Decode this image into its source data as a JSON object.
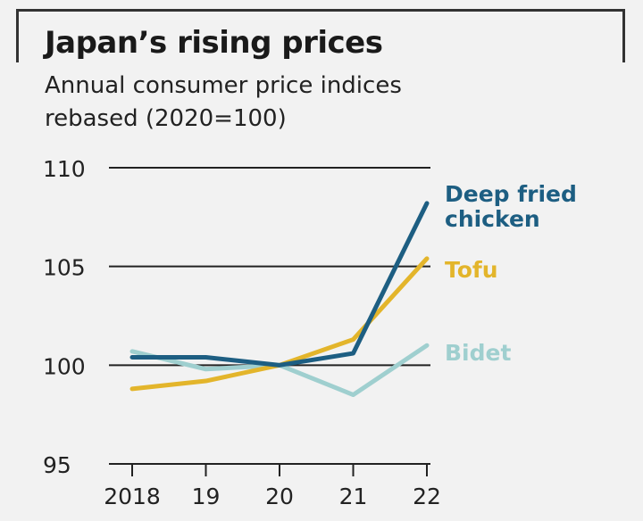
{
  "chart_data": {
    "type": "line",
    "title": "Japan’s rising prices",
    "subtitle_lines": [
      "Annual consumer price indices",
      "rebased (2020=100)"
    ],
    "x": [
      "2018",
      "19",
      "20",
      "21",
      "22"
    ],
    "ylim": [
      95,
      110
    ],
    "yticks": [
      110,
      105,
      100,
      95
    ],
    "series": [
      {
        "name": "Bidet",
        "label_lines": [
          "Bidet"
        ],
        "color": "#9fcfcf",
        "values": [
          100.7,
          99.8,
          100.0,
          98.5,
          101.0
        ]
      },
      {
        "name": "Tofu",
        "label_lines": [
          "Tofu"
        ],
        "color": "#e3b52b",
        "values": [
          98.8,
          99.2,
          100.0,
          101.3,
          105.4
        ]
      },
      {
        "name": "Deep fried chicken",
        "label_lines": [
          "Deep fried",
          "chicken"
        ],
        "color": "#1d5e82",
        "values": [
          100.4,
          100.4,
          100.0,
          100.6,
          108.2
        ]
      }
    ]
  }
}
